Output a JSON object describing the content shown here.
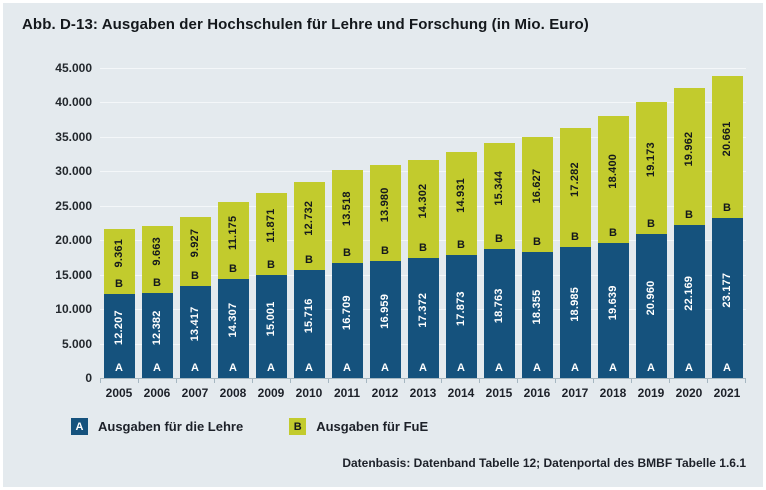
{
  "title": "Abb. D-13: Ausgaben der Hochschulen für Lehre und Forschung (in Mio. Euro)",
  "source_note": "Datenbasis: Datenband Tabelle 12; Datenportal des BMBF Tabelle 1.6.1",
  "colors": {
    "background": "#e4eaee",
    "lehre_blue": "#15527d",
    "fue_green": "#c2cb2d",
    "grid_line": "#f4f7f9",
    "axis": "#a6b7c1",
    "text_dark": "#1d2129",
    "text_on_blue": "#ffffff"
  },
  "legend": {
    "items": [
      {
        "marker": "A",
        "label": "Ausgaben für die Lehre"
      },
      {
        "marker": "B",
        "label": "Ausgaben für FuE"
      }
    ]
  },
  "chart_data": {
    "type": "bar",
    "stacked": true,
    "title": "Abb. D-13: Ausgaben der Hochschulen für Lehre und Forschung (in Mio. Euro)",
    "xlabel": "",
    "ylabel": "",
    "categories": [
      "2005",
      "2006",
      "2007",
      "2008",
      "2009",
      "2010",
      "2011",
      "2012",
      "2013",
      "2014",
      "2015",
      "2016",
      "2017",
      "2018",
      "2019",
      "2020",
      "2021"
    ],
    "series": [
      {
        "name": "Ausgaben für die Lehre",
        "marker": "A",
        "color": "#15527d",
        "label_color": "#ffffff",
        "values": [
          12207,
          12382,
          13417,
          14307,
          15001,
          15716,
          16709,
          16959,
          17372,
          17873,
          18763,
          18355,
          18985,
          19639,
          20960,
          22169,
          23177
        ]
      },
      {
        "name": "Ausgaben für FuE",
        "marker": "B",
        "color": "#c2cb2d",
        "label_color": "#14181c",
        "values": [
          9361,
          9663,
          9927,
          11175,
          11871,
          12732,
          13518,
          13980,
          14302,
          14931,
          15344,
          16627,
          17282,
          18400,
          19173,
          19962,
          20661
        ]
      }
    ],
    "ylim": [
      0,
      45000
    ],
    "ytick_step": 5000,
    "ytick_labels": [
      "0",
      "5.000",
      "10.000",
      "15.000",
      "20.000",
      "25.000",
      "30.000",
      "35.000",
      "40.000",
      "45.000"
    ],
    "grid": "horizontal",
    "legend_position": "bottom",
    "number_format": "de-thousands-dot"
  }
}
